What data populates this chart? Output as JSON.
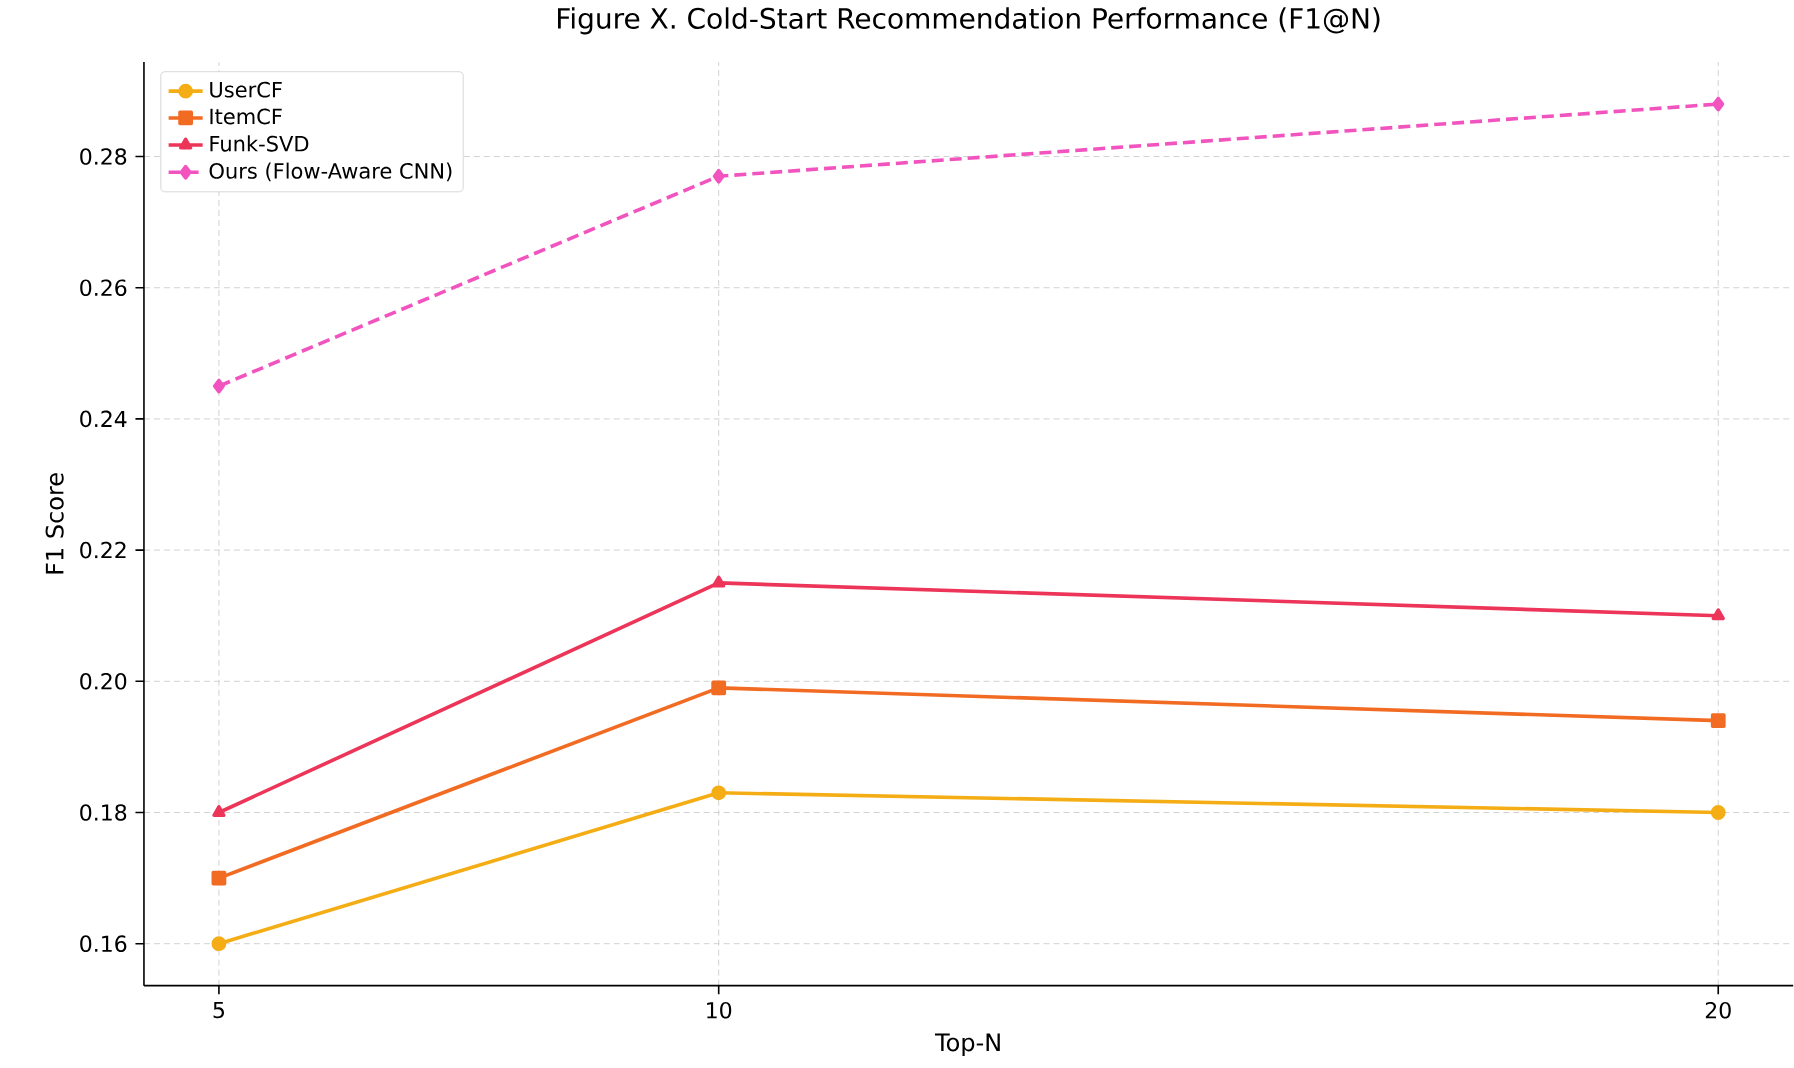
{
  "chart_data": {
    "type": "line",
    "title": "Figure X. Cold-Start Recommendation Performance (F1@N)",
    "xlabel": "Top-N",
    "ylabel": "F1 Score",
    "x": [
      5,
      10,
      20
    ],
    "series": [
      {
        "name": "UserCF",
        "color": "#f5ad16",
        "marker": "circle",
        "line_style": "solid",
        "values": [
          0.16,
          0.183,
          0.18
        ]
      },
      {
        "name": "ItemCF",
        "color": "#f26b23",
        "marker": "square",
        "line_style": "solid",
        "values": [
          0.17,
          0.199,
          0.194
        ]
      },
      {
        "name": "Funk-SVD",
        "color": "#ec3558",
        "marker": "triangle",
        "line_style": "solid",
        "values": [
          0.18,
          0.215,
          0.21
        ]
      },
      {
        "name": "Ours (Flow-Aware CNN)",
        "color": "#f254bf",
        "marker": "diamond",
        "line_style": "dashed",
        "values": [
          0.245,
          0.277,
          0.288
        ]
      }
    ],
    "xlim": [
      4.25,
      20.75
    ],
    "xticks": [
      5,
      10,
      20
    ],
    "ylim": [
      0.1536,
      0.2944
    ],
    "yticks": [
      0.16,
      0.18,
      {
        "value": 0.2,
        "label": "0.20"
      },
      0.22,
      0.24,
      0.26,
      0.28
    ],
    "grid": true,
    "legend": "top left"
  }
}
